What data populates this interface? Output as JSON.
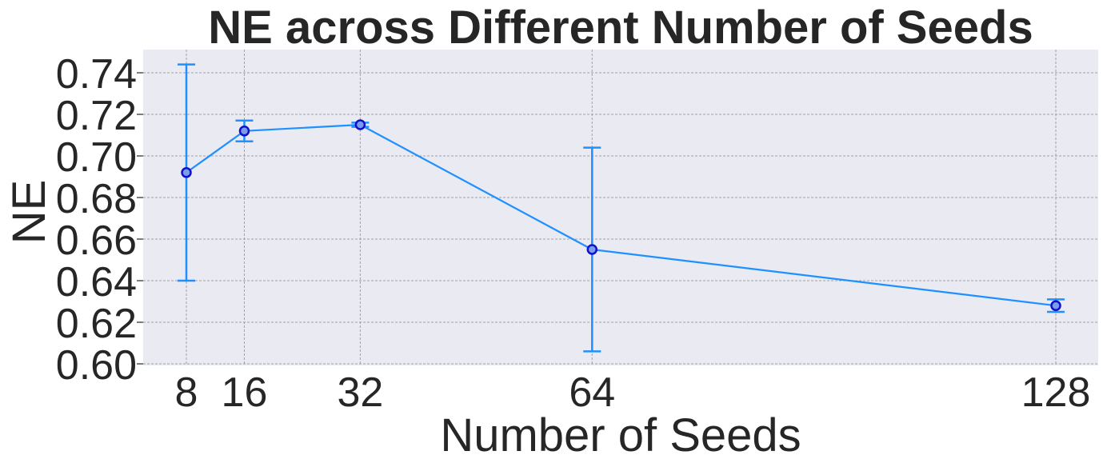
{
  "chart_data": {
    "type": "line",
    "title": "NE across Different Number of Seeds",
    "xlabel": "Number of Seeds",
    "ylabel": "NE",
    "x": [
      8,
      16,
      32,
      64,
      128
    ],
    "xticks": [
      "8",
      "16",
      "32",
      "64",
      "128"
    ],
    "xlim": [
      8,
      128
    ],
    "ylim": [
      0.6,
      0.75
    ],
    "yticks": [
      "0.60",
      "0.62",
      "0.64",
      "0.66",
      "0.68",
      "0.70",
      "0.72",
      "0.74"
    ],
    "grid": true,
    "series": [
      {
        "values": [
          0.692,
          0.712,
          0.715,
          0.655,
          0.628
        ],
        "error": [
          0.052,
          0.005,
          0.001,
          0.049,
          0.003
        ],
        "color": "#1E90FF",
        "marker_fill": "#7B9CE8",
        "marker_edge": "#1010CC"
      }
    ],
    "background": "#EAEAF2"
  }
}
